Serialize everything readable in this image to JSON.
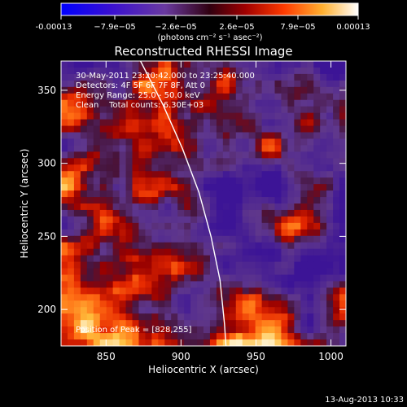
{
  "colorbar": {
    "ticks": [
      "-0.00013",
      "−7.9e−05",
      "−2.6e−05",
      "2.6e−05",
      "7.9e−05",
      "0.00013"
    ],
    "unit": "(photons cm⁻² s⁻¹ asec⁻²)",
    "range": [
      -0.00013,
      0.00013
    ],
    "colors": [
      "#0000ff",
      "#4a1fb4",
      "#6a3aa0",
      "#8a0000",
      "#e03000",
      "#ff8c1a",
      "#ffd54a",
      "#ffffff"
    ]
  },
  "chart_data": {
    "type": "heatmap",
    "title": "Reconstructed RHESSI Image",
    "xlabel": "Heliocentric X (arcsec)",
    "ylabel": "Heliocentric Y (arcsec)",
    "xlim": [
      820,
      1010
    ],
    "ylim": [
      175,
      370
    ],
    "xticks": [
      850,
      900,
      950,
      1000
    ],
    "yticks": [
      200,
      250,
      300,
      350
    ],
    "limb_line": [
      [
        873,
        370
      ],
      [
        888,
        340
      ],
      [
        901,
        310
      ],
      [
        912,
        280
      ],
      [
        920,
        250
      ],
      [
        926,
        220
      ],
      [
        929,
        190
      ],
      [
        930,
        175
      ]
    ],
    "peak": [
      828,
      255
    ],
    "annotations": [
      "30-May-2011 23:20:42.000 to 23:25:40.000",
      "Detectors: 4F 5F 6F 7F 8F, Att 0",
      "Energy Range: 25.0 - 50.0 keV",
      "Clean    Total counts: 6.30E+03"
    ],
    "peak_label": "Position of Peak = [828,255]"
  },
  "footer_date": "13-Aug-2013 10:33"
}
